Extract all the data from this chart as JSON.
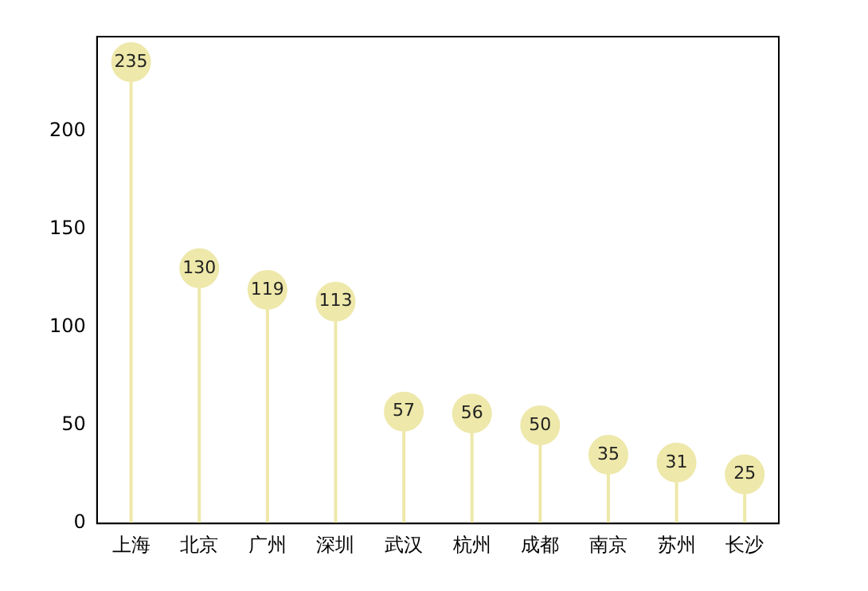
{
  "chart_data": {
    "type": "lollipop",
    "categories": [
      "上海",
      "北京",
      "广州",
      "深圳",
      "武汉",
      "杭州",
      "成都",
      "南京",
      "苏州",
      "长沙"
    ],
    "series": [
      {
        "color": "#eee8aa",
        "values": [
          235,
          130,
          119,
          113,
          57,
          56,
          50,
          35,
          31,
          25
        ]
      }
    ],
    "ylim": [
      0,
      248
    ],
    "yticks": [
      0,
      50,
      100,
      150,
      200
    ],
    "data_labels": true,
    "grid": false,
    "legend": false,
    "marker": "circle"
  }
}
